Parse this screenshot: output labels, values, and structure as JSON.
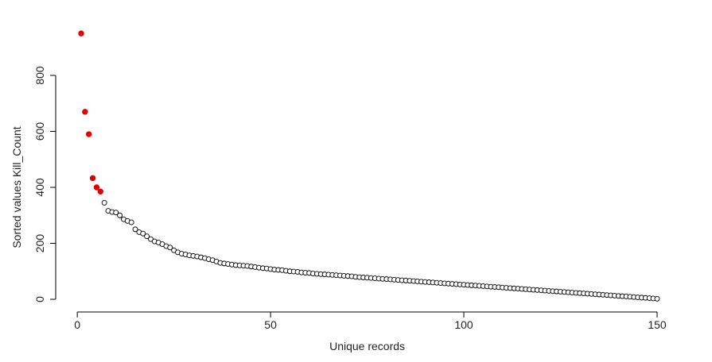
{
  "chart_data": {
    "type": "scatter",
    "title": "",
    "xlabel": "Unique records",
    "ylabel": "Sorted values Kill_Count",
    "xlim": [
      1,
      150
    ],
    "ylim": [
      0,
      950
    ],
    "x_ticks": [
      0,
      50,
      100,
      150
    ],
    "y_ticks": [
      0,
      200,
      400,
      600,
      800
    ],
    "x_tick_labels": [
      "0",
      "50",
      "100",
      "150"
    ],
    "y_tick_labels": [
      "0",
      "200",
      "400",
      "600",
      "800"
    ],
    "grid": false,
    "legend": "none",
    "highlight_color": "#e00000",
    "point_color": "#000000",
    "highlighted_count": 6,
    "x": [
      1,
      2,
      3,
      4,
      5,
      6,
      7,
      8,
      9,
      10,
      11,
      12,
      13,
      14,
      15,
      16,
      17,
      18,
      19,
      20,
      21,
      22,
      23,
      24,
      25,
      26,
      27,
      28,
      29,
      30,
      31,
      32,
      33,
      34,
      35,
      36,
      37,
      38,
      39,
      40,
      41,
      42,
      43,
      44,
      45,
      46,
      47,
      48,
      49,
      50,
      51,
      52,
      53,
      54,
      55,
      56,
      57,
      58,
      59,
      60,
      61,
      62,
      63,
      64,
      65,
      66,
      67,
      68,
      69,
      70,
      71,
      72,
      73,
      74,
      75,
      76,
      77,
      78,
      79,
      80,
      81,
      82,
      83,
      84,
      85,
      86,
      87,
      88,
      89,
      90,
      91,
      92,
      93,
      94,
      95,
      96,
      97,
      98,
      99,
      100,
      101,
      102,
      103,
      104,
      105,
      106,
      107,
      108,
      109,
      110,
      111,
      112,
      113,
      114,
      115,
      116,
      117,
      118,
      119,
      120,
      121,
      122,
      123,
      124,
      125,
      126,
      127,
      128,
      129,
      130,
      131,
      132,
      133,
      134,
      135,
      136,
      137,
      138,
      139,
      140,
      141,
      142,
      143,
      144,
      145,
      146,
      147,
      148,
      149,
      150
    ],
    "values": [
      950,
      670,
      590,
      433,
      400,
      385,
      345,
      316,
      312,
      310,
      300,
      286,
      280,
      275,
      250,
      240,
      235,
      225,
      215,
      207,
      203,
      197,
      190,
      185,
      175,
      168,
      163,
      160,
      157,
      155,
      153,
      150,
      147,
      143,
      140,
      135,
      130,
      128,
      126,
      124,
      122,
      121,
      120,
      119,
      117,
      115,
      113,
      111,
      110,
      108,
      106,
      105,
      104,
      102,
      100,
      99,
      98,
      96,
      95,
      94,
      92,
      91,
      90,
      89,
      88,
      87,
      86,
      85,
      84,
      83,
      82,
      80,
      79,
      78,
      77,
      76,
      75,
      74,
      73,
      72,
      71,
      70,
      69,
      68,
      67,
      66,
      65,
      64,
      63,
      62,
      61,
      60,
      59,
      58,
      57,
      56,
      55,
      54,
      53,
      52,
      51,
      50,
      49,
      48,
      47,
      46,
      45,
      44,
      43,
      42,
      41,
      40,
      39,
      38,
      37,
      36,
      35,
      34,
      33,
      32,
      31,
      30,
      29,
      28,
      27,
      26,
      25,
      24,
      23,
      22,
      21,
      20,
      19,
      18,
      17,
      16,
      15,
      14,
      13,
      12,
      11,
      10,
      9,
      8,
      7,
      6,
      5,
      4,
      3,
      2
    ]
  }
}
